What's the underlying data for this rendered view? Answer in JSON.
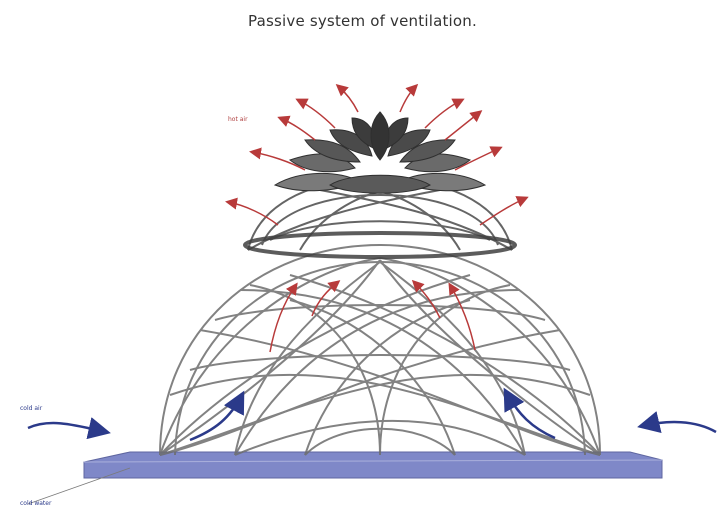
{
  "title": "Passive system of ventilation.",
  "labels": {
    "hot_air": "hot air",
    "cold_air": "cold air",
    "cold_water": "cold water"
  },
  "colors": {
    "hot_arrow": "#b83a3a",
    "cold_arrow": "#2b3a8a",
    "structure": "#707070",
    "base": "#7f88c8"
  }
}
